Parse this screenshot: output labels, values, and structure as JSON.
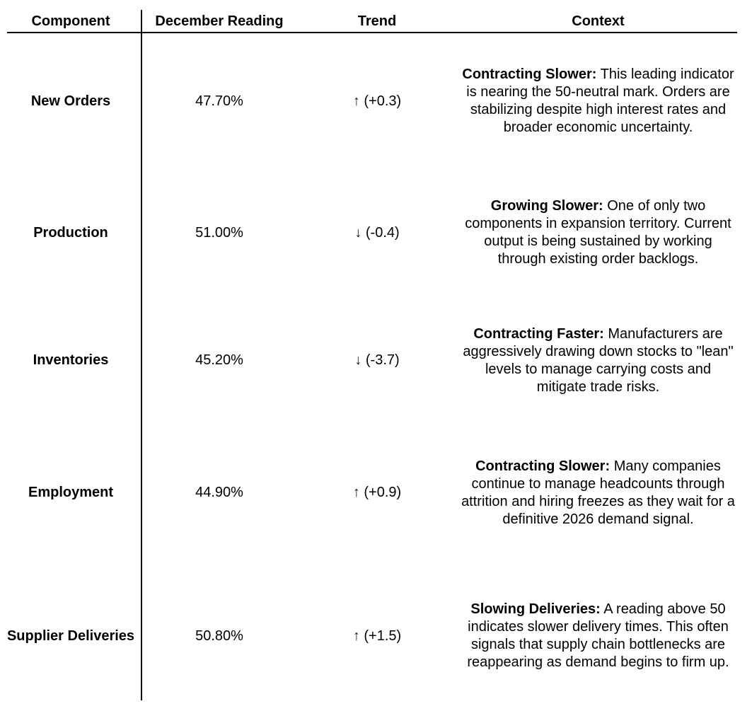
{
  "chart_data": {
    "type": "table",
    "columns": {
      "component": "Component",
      "december_reading": "December Reading",
      "trend": "Trend",
      "context": "Context"
    },
    "rows": [
      {
        "component": "New Orders",
        "december_reading": "47.70%",
        "trend_arrow": "↑",
        "trend_change": "(+0.3)",
        "context_label": "Contracting Slower:",
        "context_body": "This leading indicator is nearing the 50-neutral mark. Orders are stabilizing despite high interest rates and broader economic uncertainty."
      },
      {
        "component": "Production",
        "december_reading": "51.00%",
        "trend_arrow": "↓",
        "trend_change": "(-0.4)",
        "context_label": "Growing Slower:",
        "context_body": "One of only two components in expansion territory. Current output is being sustained by working through existing order backlogs."
      },
      {
        "component": "Inventories",
        "december_reading": "45.20%",
        "trend_arrow": "↓",
        "trend_change": "(-3.7)",
        "context_label": "Contracting Faster:",
        "context_body": "Manufacturers are aggressively drawing down stocks to \"lean\" levels to manage carrying costs and mitigate trade risks."
      },
      {
        "component": "Employment",
        "december_reading": "44.90%",
        "trend_arrow": "↑",
        "trend_change": "(+0.9)",
        "context_label": "Contracting Slower:",
        "context_body": "Many companies continue to manage headcounts through attrition and hiring freezes as they wait for a definitive 2026 demand signal."
      },
      {
        "component": "Supplier Deliveries",
        "december_reading": "50.80%",
        "trend_arrow": "↑",
        "trend_change": "(+1.5)",
        "context_label": "Slowing Deliveries:",
        "context_body": "A reading above 50 indicates slower delivery times. This often signals that supply chain bottlenecks are reappearing as demand begins to firm up."
      }
    ],
    "text_color": "#000000",
    "background_color": "#ffffff",
    "layout": {
      "grid": "off",
      "column_divider_after": "Component",
      "header_underline": true
    }
  }
}
